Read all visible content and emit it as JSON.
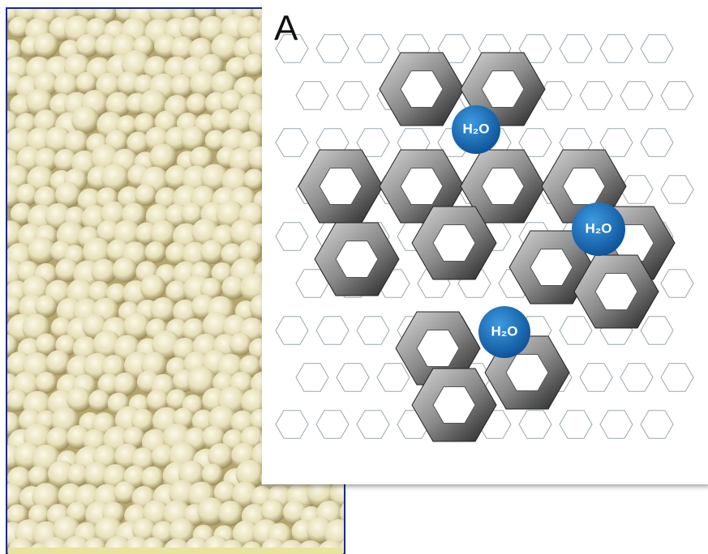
{
  "figure": {
    "panel_label": "A",
    "molecules": [
      {
        "label": "H₂O"
      },
      {
        "label": "H₂O"
      },
      {
        "label": "H₂O"
      }
    ]
  }
}
